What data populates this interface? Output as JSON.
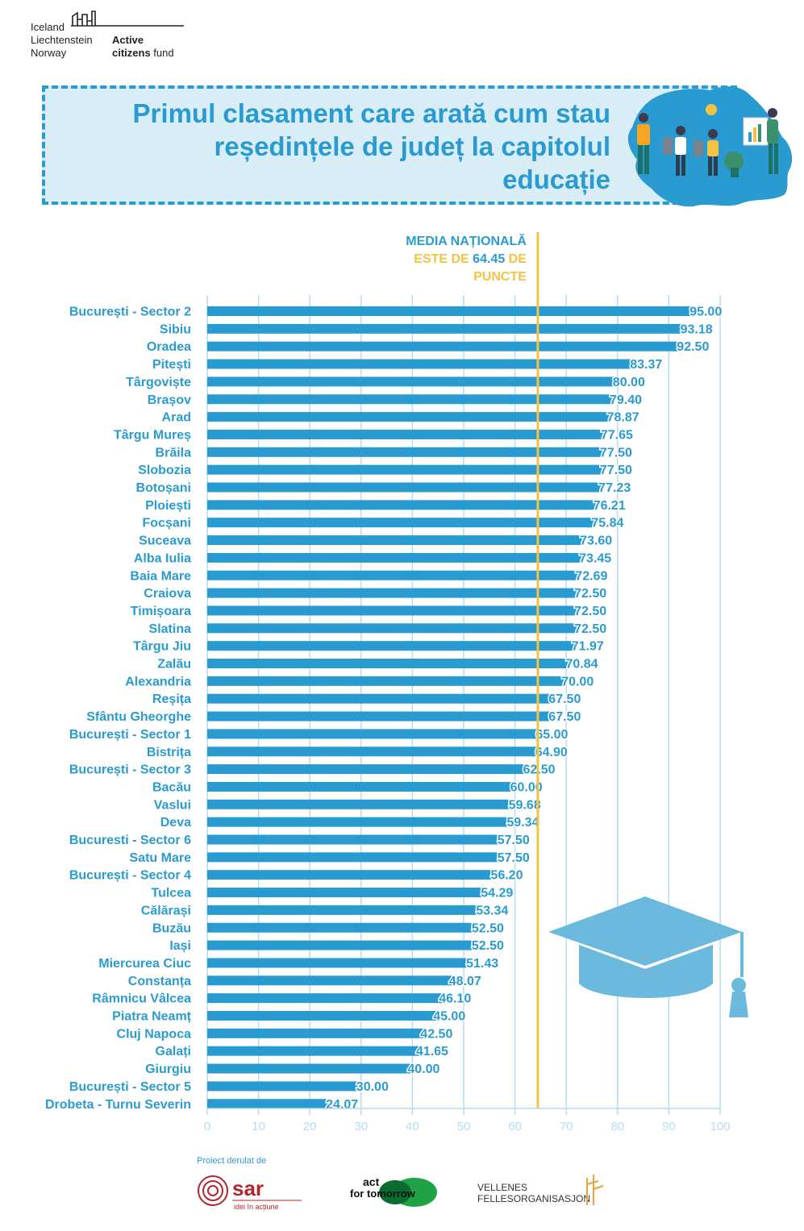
{
  "donor_logo": {
    "countries": [
      "Iceland",
      "Liechtenstein",
      "Norway"
    ],
    "fund_line1": "Active",
    "fund_line2_bold": "citizens",
    "fund_line2_rest": " fund"
  },
  "title": {
    "lines": [
      "Primul clasament care arată cum stau",
      "reședințele de județ la capitolul",
      "educație"
    ]
  },
  "colors": {
    "bar": "#2a9bd0",
    "average_line": "#f5c242",
    "grid": "#b7dcef",
    "banner": "#d9edf7",
    "cap": "#6bb9dc"
  },
  "chart_data": {
    "type": "bar",
    "orientation": "horizontal",
    "categories": [
      "București - Sector 2",
      "Sibiu",
      "Oradea",
      "Pitești",
      "Târgoviște",
      "Brașov",
      "Arad",
      "Târgu Mureș",
      "Brăila",
      "Slobozia",
      "Botoșani",
      "Ploiești",
      "Focșani",
      "Suceava",
      "Alba Iulia",
      "Baia Mare",
      "Craiova",
      "Timișoara",
      "Slatina",
      "Târgu Jiu",
      "Zalău",
      "Alexandria",
      "Reșița",
      "Sfântu Gheorghe",
      "București - Sector 1",
      "Bistrița",
      "București - Sector 3",
      "Bacău",
      "Vaslui",
      "Deva",
      "Bucuresti - Sector 6",
      "Satu Mare",
      "București - Sector 4",
      "Tulcea",
      "Călărași",
      "Buzău",
      "Iași",
      "Miercurea Ciuc",
      "Constanța",
      "Râmnicu Vâlcea",
      "Piatra Neamț",
      "Cluj Napoca",
      "Galați",
      "Giurgiu",
      "București - Sector 5",
      "Drobeta - Turnu Severin"
    ],
    "values": [
      95.0,
      93.18,
      92.5,
      83.37,
      80.0,
      79.4,
      78.87,
      77.65,
      77.5,
      77.5,
      77.23,
      76.21,
      75.84,
      73.6,
      73.45,
      72.69,
      72.5,
      72.5,
      72.5,
      71.97,
      70.84,
      70.0,
      67.5,
      67.5,
      65.0,
      64.9,
      62.5,
      60.0,
      59.68,
      59.34,
      57.5,
      57.5,
      56.2,
      54.29,
      53.34,
      52.5,
      52.5,
      51.43,
      48.07,
      46.1,
      45.0,
      42.5,
      41.65,
      40.0,
      30.0,
      24.07
    ],
    "value_labels": [
      "95.00",
      "93.18",
      "92.50",
      "83.37",
      "80.00",
      "79.40",
      "78.87",
      "77.65",
      "77.50",
      "77.50",
      "77.23",
      "76.21",
      "75.84",
      "73.60",
      "73.45",
      "72.69",
      "72.50",
      "72.50",
      "72.50",
      "71.97",
      "70.84",
      "70.00",
      "67.50",
      "67.50",
      "65.00",
      "64.90",
      "62.50",
      "60.00",
      "59.68",
      "59.34",
      "57.50",
      "57.50",
      "56.20",
      "54.29",
      "53.34",
      "52.50",
      "52.50",
      "51.43",
      "48.07",
      "46.10",
      "45.00",
      "42.50",
      "41.65",
      "40.00",
      "30.00",
      "24.07"
    ],
    "xlim": [
      0,
      100
    ],
    "xticks": [
      0,
      10,
      20,
      30,
      40,
      50,
      60,
      70,
      80,
      90,
      100
    ],
    "grid": true,
    "reference_line": {
      "value": 64.45,
      "label_line1": "MEDIA NAȚIONALĂ",
      "label_line2_a": "ESTE DE ",
      "label_line2_value": "64.45",
      "label_line2_b": " DE",
      "label_line3": "PUNCTE"
    }
  },
  "footer": {
    "project_label": "Proiect derulat de",
    "sar_name": "sar",
    "sar_tagline": "idei în acțiune",
    "act_line1": "act",
    "act_line2": "for tomorrow",
    "vellenes_line1": "VELLENES",
    "vellenes_line2": "FELLESORGANISASJON"
  },
  "icons": {
    "donor": "city-skyline-icon",
    "map": "romania-map-icon",
    "cap": "graduation-cap-icon"
  }
}
